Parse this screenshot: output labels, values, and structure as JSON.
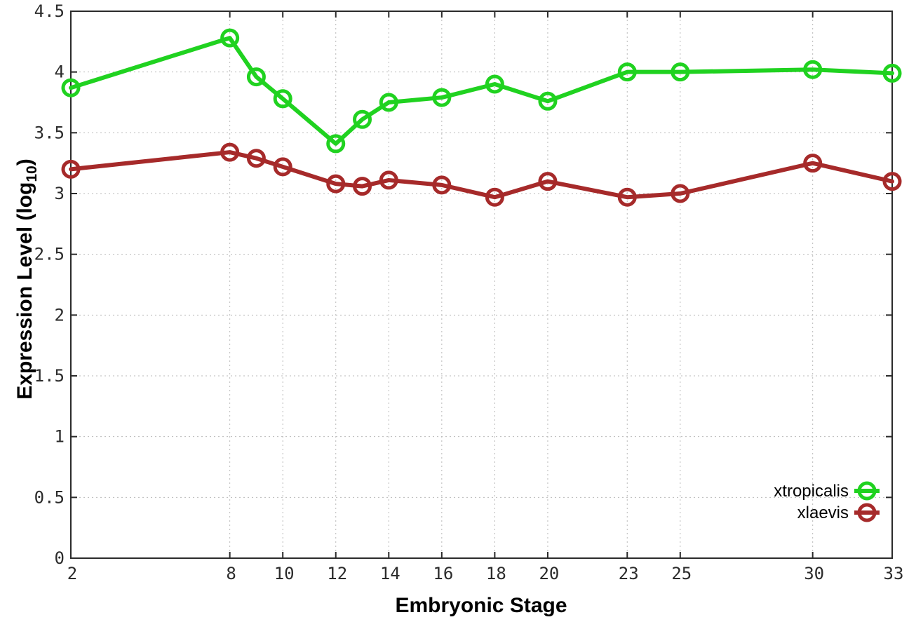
{
  "chart_data": {
    "type": "line",
    "title": "",
    "xlabel": "Embryonic Stage",
    "ylabel": "Expression Level (log10)",
    "ylabel_parts": {
      "pre": "Expression Level (log",
      "sub": "10",
      "post": ")"
    },
    "x": [
      2,
      8,
      9,
      10,
      12,
      13,
      14,
      16,
      18,
      20,
      23,
      25,
      30,
      33
    ],
    "series": [
      {
        "name": "xtropicalis",
        "color": "#20d220",
        "values": [
          3.87,
          4.28,
          3.96,
          3.78,
          3.41,
          3.61,
          3.75,
          3.79,
          3.9,
          3.76,
          4.0,
          4.0,
          4.02,
          3.99
        ]
      },
      {
        "name": "xlaevis",
        "color": "#a62a2a",
        "values": [
          3.2,
          3.34,
          3.29,
          3.22,
          3.08,
          3.06,
          3.11,
          3.07,
          2.97,
          3.1,
          2.97,
          3.0,
          3.25,
          3.1
        ]
      }
    ],
    "xlim": [
      2,
      33
    ],
    "ylim": [
      0,
      4.5
    ],
    "xticks": {
      "values": [
        2,
        8,
        10,
        12,
        14,
        16,
        18,
        20,
        23,
        25,
        30,
        33
      ],
      "labels": [
        "2",
        "8",
        "10",
        "12",
        "14",
        "16",
        "18",
        "20",
        "23",
        "25",
        "30",
        "33"
      ]
    },
    "yticks": {
      "values": [
        0,
        0.5,
        1,
        1.5,
        2,
        2.5,
        3,
        3.5,
        4,
        4.5
      ],
      "labels": [
        "0",
        "0.5",
        "1",
        "1.5",
        "2",
        "2.5",
        "3",
        "3.5",
        "4",
        "4.5"
      ]
    },
    "grid": true,
    "legend_position": "bottom-right",
    "colors": {
      "grid": "#b9b9b9",
      "axis": "#2b2b2b",
      "background": "#ffffff"
    }
  }
}
